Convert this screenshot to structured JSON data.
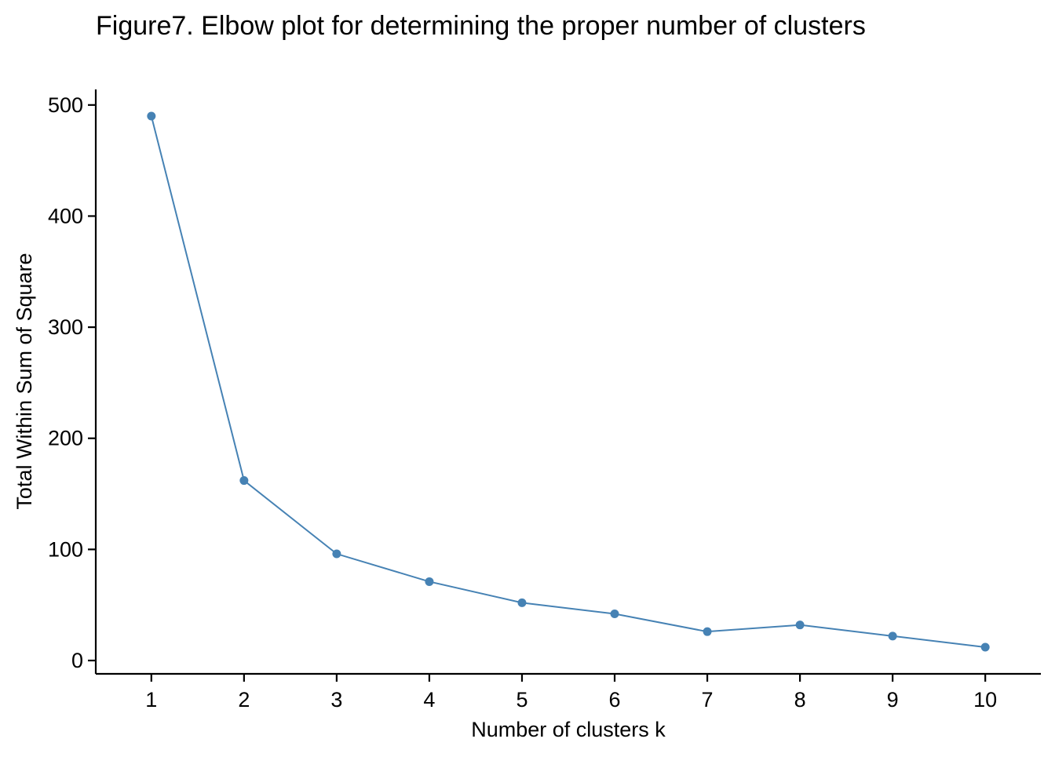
{
  "chart_data": {
    "type": "line",
    "title": "Figure7. Elbow plot for determining the proper number of clusters",
    "xlabel": "Number of clusters k",
    "ylabel": "Total Within Sum of Square",
    "x": [
      1,
      2,
      3,
      4,
      5,
      6,
      7,
      8,
      9,
      10
    ],
    "x_tick_labels": [
      "1",
      "2",
      "3",
      "4",
      "5",
      "6",
      "7",
      "8",
      "9",
      "10"
    ],
    "y_ticks": [
      0,
      100,
      200,
      300,
      400,
      500
    ],
    "y_tick_labels": [
      "0",
      "100",
      "200",
      "300",
      "400",
      "500"
    ],
    "series": [
      {
        "values": [
          490,
          162,
          96,
          71,
          52,
          42,
          26,
          32,
          22,
          12
        ],
        "color": "#4682b4"
      }
    ],
    "xlim": [
      0.4,
      10.6
    ],
    "ylim": [
      -12,
      514
    ],
    "grid": false,
    "legend": "none"
  }
}
